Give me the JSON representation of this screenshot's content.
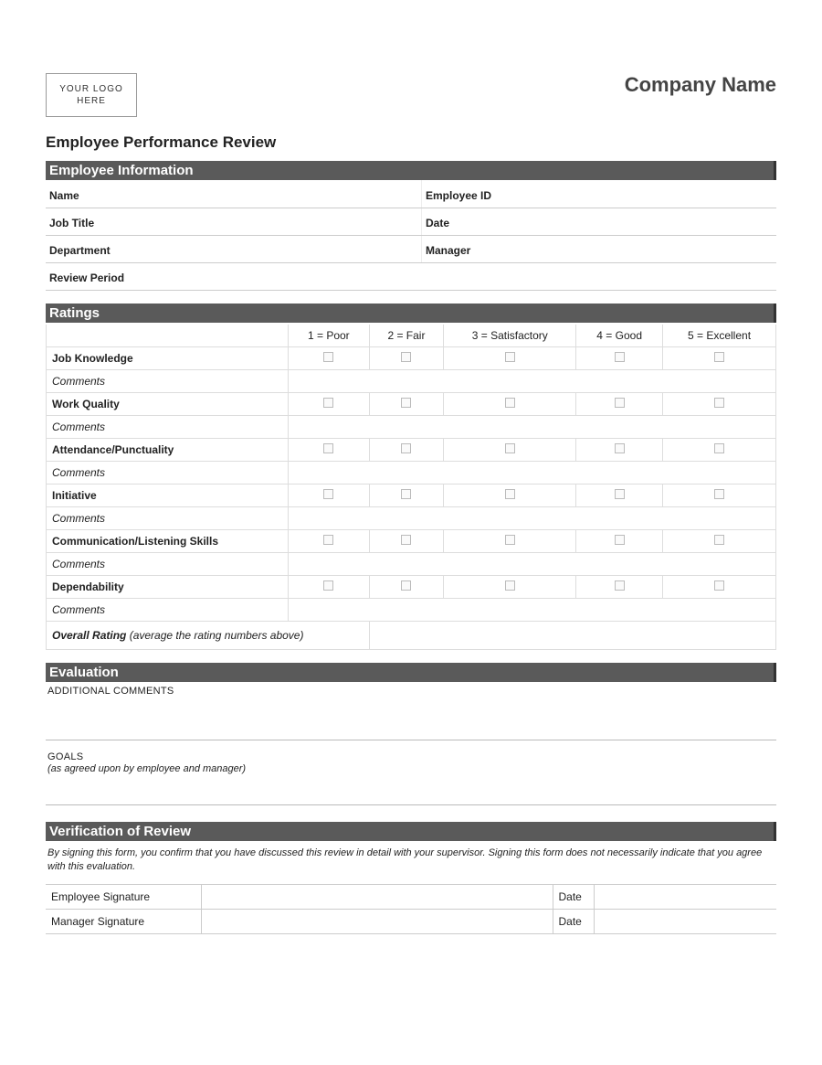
{
  "header": {
    "logo_text": "YOUR LOGO\nHERE",
    "company_name": "Company Name"
  },
  "form_title": "Employee Performance Review",
  "sections": {
    "employee_info": {
      "title": "Employee Information",
      "fields": {
        "name": "Name",
        "employee_id": "Employee ID",
        "job_title": "Job Title",
        "date": "Date",
        "department": "Department",
        "manager": "Manager",
        "review_period": "Review Period"
      }
    },
    "ratings": {
      "title": "Ratings",
      "scale": [
        "1 = Poor",
        "2 = Fair",
        "3 = Satisfactory",
        "4 = Good",
        "5 = Excellent"
      ],
      "criteria": [
        "Job Knowledge",
        "Work Quality",
        "Attendance/Punctuality",
        "Initiative",
        "Communication/Listening Skills",
        "Dependability"
      ],
      "comments_label": "Comments",
      "overall_label": "Overall Rating",
      "overall_note": "(average the rating numbers above)"
    },
    "evaluation": {
      "title": "Evaluation",
      "additional_comments_label": "ADDITIONAL COMMENTS",
      "goals_label": "GOALS",
      "goals_note": "(as agreed upon by employee and manager)"
    },
    "verification": {
      "title": "Verification of Review",
      "text": "By signing this form, you confirm that you have discussed this review in detail with your supervisor. Signing this form does not necessarily indicate that you agree with this evaluation.",
      "employee_signature": "Employee Signature",
      "manager_signature": "Manager Signature",
      "date_label": "Date"
    }
  },
  "colors": {
    "section_header_bg": "#5a5a5a",
    "section_header_text": "#ffffff",
    "border": "#cccccc",
    "text": "#222222",
    "company_name_color": "#444444"
  }
}
